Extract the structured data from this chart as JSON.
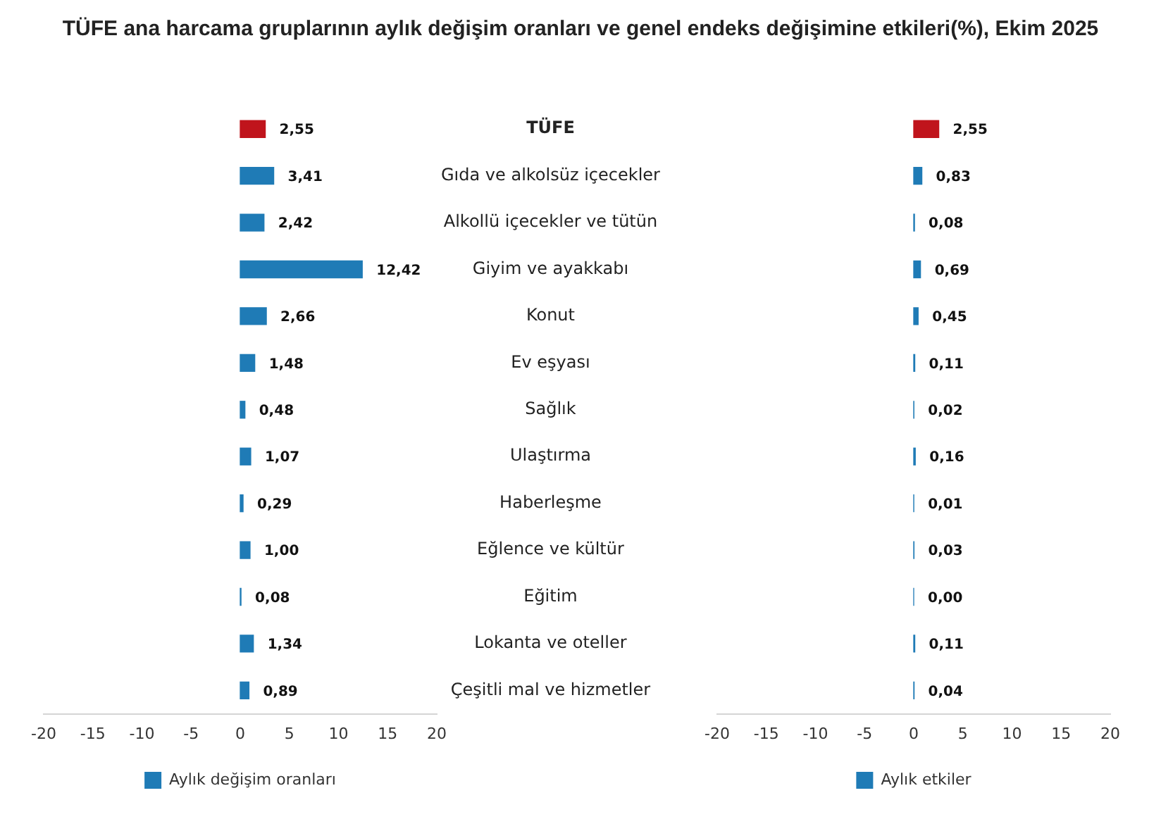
{
  "chart_data": [
    {
      "type": "bar",
      "orientation": "horizontal",
      "title": "TÜFE ana harcama gruplarının aylık değişim oranları ve genel endeks değişimine etkileri(%), Ekim 2025",
      "categories": [
        "TÜFE",
        "Gıda ve alkolsüz içecekler",
        "Alkollü içecekler ve tütün",
        "Giyim ve ayakkabı",
        "Konut",
        "Ev eşyası",
        "Sağlık",
        "Ulaştırma",
        "Haberleşme",
        "Eğlence ve kültür",
        "Eğitim",
        "Lokanta ve oteller",
        "Çeşitli mal ve hizmetler"
      ],
      "series": [
        {
          "name": "Aylık değişim oranları",
          "color": "#1f7bb6",
          "colors": [
            "#c0141c",
            "#1f7bb6",
            "#1f7bb6",
            "#1f7bb6",
            "#1f7bb6",
            "#1f7bb6",
            "#1f7bb6",
            "#1f7bb6",
            "#1f7bb6",
            "#1f7bb6",
            "#1f7bb6",
            "#1f7bb6",
            "#1f7bb6"
          ],
          "values": [
            2.55,
            3.41,
            2.42,
            12.42,
            2.66,
            1.48,
            0.48,
            1.07,
            0.29,
            1.0,
            0.08,
            1.34,
            0.89
          ],
          "value_labels": [
            "2,55",
            "3,41",
            "2,42",
            "12,42",
            "2,66",
            "1,48",
            "0,48",
            "1,07",
            "0,29",
            "1,00",
            "0,08",
            "1,34",
            "0,89"
          ]
        }
      ],
      "xlim": [
        -20,
        20
      ],
      "xticks": [
        -20,
        -15,
        -10,
        -5,
        0,
        5,
        10,
        15,
        20
      ],
      "legend": "bottom"
    },
    {
      "type": "bar",
      "orientation": "horizontal",
      "categories": [
        null,
        null,
        null,
        null,
        null,
        null,
        null,
        null,
        null,
        null,
        null,
        null,
        null
      ],
      "series": [
        {
          "name": "Aylık etkiler",
          "color": "#1f7bb6",
          "colors": [
            "#c0141c",
            "#1f7bb6",
            "#1f7bb6",
            "#1f7bb6",
            "#1f7bb6",
            "#1f7bb6",
            "#1f7bb6",
            "#1f7bb6",
            "#1f7bb6",
            "#1f7bb6",
            "#1f7bb6",
            "#1f7bb6",
            "#1f7bb6"
          ],
          "values": [
            2.55,
            0.83,
            0.08,
            0.69,
            0.45,
            0.11,
            0.02,
            0.16,
            0.01,
            0.03,
            0.0,
            0.11,
            0.04
          ],
          "value_labels": [
            "2,55",
            "0,83",
            "0,08",
            "0,69",
            "0,45",
            "0,11",
            "0,02",
            "0,16",
            "0,01",
            "0,03",
            "0,00",
            "0,11",
            "0,04"
          ]
        }
      ],
      "xlim": [
        -20,
        20
      ],
      "xticks": [
        -20,
        -15,
        -10,
        -5,
        0,
        5,
        10,
        15,
        20
      ],
      "legend": "bottom",
      "tick_labels": "x"
    }
  ]
}
